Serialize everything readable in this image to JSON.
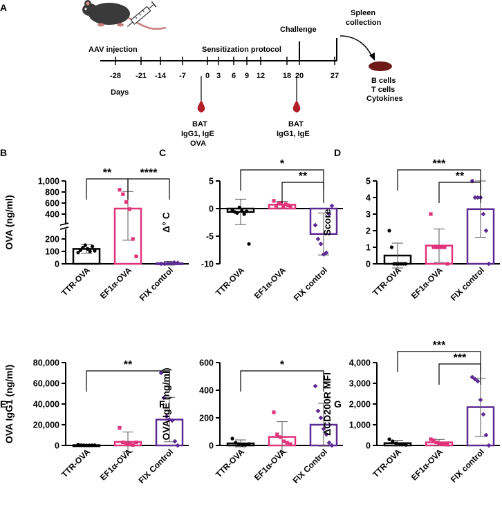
{
  "timeline": {
    "panel_label": "A",
    "aav_label": "AAV injection",
    "sensitization_label": "Sensitization protocol",
    "challenge_label": "Challenge",
    "spleen_line1": "Spleen",
    "spleen_line2": "collection",
    "days_label": "Days",
    "ticks": [
      "-28",
      "-21",
      "-14",
      "-7",
      "0",
      "3",
      "6",
      "9",
      "12",
      "18",
      "20",
      "27"
    ],
    "bat1": [
      "BAT",
      "IgG1, IgE",
      "OVA"
    ],
    "bat2": [
      "BAT",
      "IgG1, IgE"
    ],
    "outputs": [
      "B cells",
      "T cells",
      "Cytokines"
    ],
    "colors": {
      "blood": "#b01f2a",
      "spleen": "#6e1a16",
      "mouse": "#3a3a3a"
    }
  },
  "colors": {
    "group1": "#000000",
    "group2": "#e0337a",
    "group3": "#5b2a93"
  },
  "chart_data": [
    {
      "panel": "B",
      "type": "bar",
      "ylabel": "OVA (ng/ml)",
      "categories": [
        "TTR-OVA",
        "EF1α-OVA",
        "FIX control"
      ],
      "broken_axis": true,
      "yticks_lower": [
        "0",
        "100",
        "200"
      ],
      "yticks_upper": [
        "400",
        "600",
        "800",
        "1,000"
      ],
      "ytick_values_lower": [
        0,
        100,
        200
      ],
      "ytick_values_upper": [
        400,
        600,
        800,
        1000
      ],
      "lower_range": [
        0,
        300
      ],
      "upper_range": [
        300,
        1000
      ],
      "means": [
        120,
        500,
        5
      ],
      "sd": [
        35,
        310,
        15
      ],
      "points": [
        [
          90,
          110,
          130,
          150,
          120,
          100,
          140,
          105
        ],
        [
          840,
          760,
          620,
          490,
          200,
          60
        ],
        [
          0,
          0,
          5,
          3,
          10,
          8
        ]
      ],
      "sig": [
        {
          "from": 0,
          "to": 1,
          "label": "**"
        },
        {
          "from": 1,
          "to": 2,
          "label": "****"
        }
      ]
    },
    {
      "panel": "C",
      "type": "bar",
      "ylabel": "Δ° C",
      "categories": [
        "TTR-OVA",
        "EF1α-OVA",
        "FIX control"
      ],
      "ylim": [
        -10,
        5
      ],
      "yticks": [
        "-10",
        "-5",
        "0",
        "5"
      ],
      "ytick_values": [
        -10,
        -5,
        0,
        5
      ],
      "means": [
        -0.6,
        0.7,
        -4.6
      ],
      "sd": [
        2.3,
        0.6,
        3.8
      ],
      "points": [
        [
          -0.3,
          -0.6,
          -0.8,
          0.2,
          -0.4,
          -1.0,
          -0.5,
          -6.4
        ],
        [
          1.4,
          0.5,
          0.9,
          1.0,
          0.3,
          0.8,
          0.6,
          0.4
        ],
        [
          -3.0,
          -5.5,
          -6.4,
          -8.3,
          -8.0,
          -1.0,
          0.5
        ]
      ],
      "sig": [
        {
          "from": 0,
          "to": 2,
          "label": "*"
        },
        {
          "from": 1,
          "to": 2,
          "label": "**"
        }
      ]
    },
    {
      "panel": "D",
      "type": "bar",
      "ylabel": "Score",
      "categories": [
        "TTR-OVA",
        "EF1α-OVA",
        "FIX control"
      ],
      "ylim": [
        0,
        5
      ],
      "yticks": [
        "0",
        "1",
        "2",
        "3",
        "4",
        "5"
      ],
      "ytick_values": [
        0,
        1,
        2,
        3,
        4,
        5
      ],
      "means": [
        0.5,
        1.1,
        3.3
      ],
      "sd": [
        0.75,
        1.0,
        1.7
      ],
      "points": [
        [
          2,
          1,
          0,
          0,
          0,
          0,
          0,
          0
        ],
        [
          3,
          1,
          1,
          1,
          1,
          1,
          0
        ],
        [
          5,
          4,
          4,
          4,
          3,
          2,
          0
        ]
      ],
      "sig": [
        {
          "from": 0,
          "to": 2,
          "label": "***"
        },
        {
          "from": 1,
          "to": 2,
          "label": "**"
        }
      ]
    },
    {
      "panel": "E",
      "type": "bar",
      "ylabel": "OVA IgG1 (ng/ml)",
      "categories": [
        "TTR-OVA",
        "EF1α-OVA",
        "FIX Control"
      ],
      "ylim": [
        0,
        80000
      ],
      "yticks": [
        "0",
        "20,000",
        "40,000",
        "60,000",
        "80,000"
      ],
      "ytick_values": [
        0,
        20000,
        40000,
        60000,
        80000
      ],
      "means": [
        300,
        3500,
        25000
      ],
      "sd": [
        400,
        9500,
        21500
      ],
      "points": [
        [
          800,
          300,
          200,
          100,
          100,
          200,
          300
        ],
        [
          17000,
          3000,
          2000,
          1000,
          500,
          3000
        ],
        [
          70000,
          46000,
          28000,
          25000,
          24000,
          4000,
          0
        ]
      ],
      "sig": [
        {
          "from": 0,
          "to": 2,
          "label": "**"
        }
      ]
    },
    {
      "panel": "F",
      "type": "bar",
      "ylabel": "OVA IgE (ng/ml)",
      "categories": [
        "TTR-OVA",
        "EF1α-OVA",
        "FIX Control"
      ],
      "ylim": [
        0,
        600
      ],
      "yticks": [
        "0",
        "200",
        "400",
        "600"
      ],
      "ytick_values": [
        0,
        200,
        400,
        600
      ],
      "means": [
        15,
        62,
        150
      ],
      "sd": [
        25,
        110,
        155
      ],
      "points": [
        [
          50,
          20,
          10,
          5,
          5,
          10
        ],
        [
          240,
          80,
          60,
          30,
          20,
          10
        ],
        [
          430,
          250,
          200,
          120,
          80,
          20,
          0
        ]
      ],
      "sig": [
        {
          "from": 0,
          "to": 2,
          "label": "*"
        }
      ]
    },
    {
      "panel": "G",
      "type": "bar",
      "ylabel": "ΔCD200R MFI",
      "categories": [
        "TTR-OVA",
        "EF1α-OVA",
        "FIX control"
      ],
      "ylim": [
        0,
        4000
      ],
      "yticks": [
        "0",
        "1,000",
        "2,000",
        "3,000",
        "4,000"
      ],
      "ytick_values": [
        0,
        1000,
        2000,
        3000,
        4000
      ],
      "means": [
        110,
        150,
        1850
      ],
      "sd": [
        140,
        140,
        1400
      ],
      "points": [
        [
          300,
          200,
          100,
          60,
          50,
          30
        ],
        [
          300,
          250,
          150,
          100,
          80,
          60,
          40
        ],
        [
          3300,
          3200,
          3100,
          2200,
          1500,
          500,
          0
        ]
      ],
      "sig": [
        {
          "from": 0,
          "to": 2,
          "label": "***"
        },
        {
          "from": 1,
          "to": 2,
          "label": "***"
        }
      ]
    }
  ]
}
